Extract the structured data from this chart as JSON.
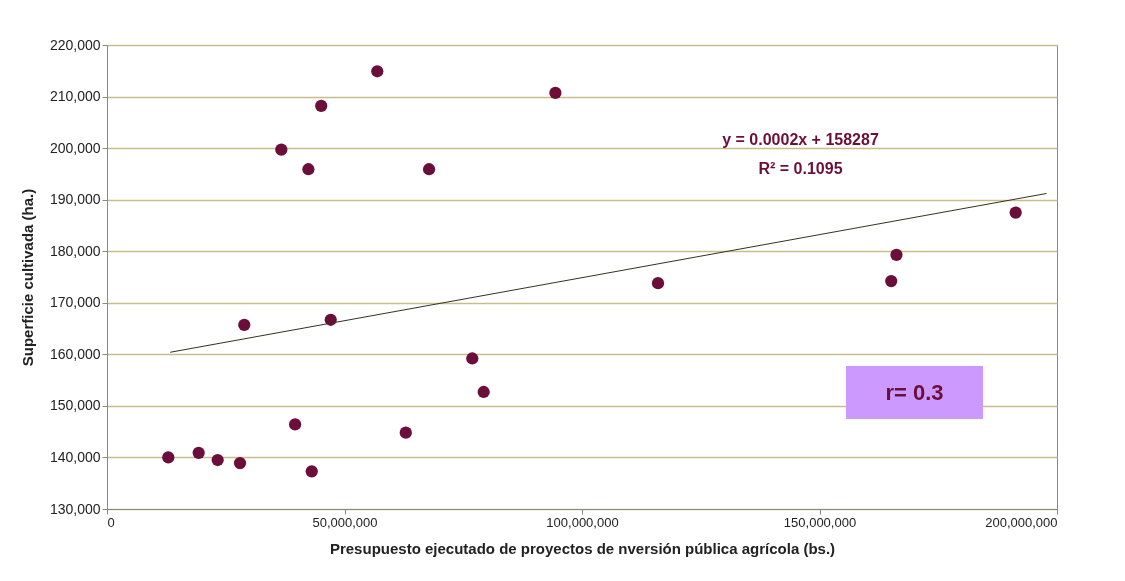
{
  "chart_data": {
    "type": "scatter",
    "xlabel": "Presupuesto ejecutado de proyectos de nversión pública agrícola (bs.)",
    "ylabel": "Superficie cultivada (ha.)",
    "series": [
      {
        "marker": "circle",
        "color": "#6b0f3a",
        "x": [
          12900000,
          19300000,
          23300000,
          28000000,
          28900000,
          36700000,
          39600000,
          42400000,
          43100000,
          45100000,
          47100000,
          56900000,
          62900000,
          67800000,
          76900000,
          79300000,
          94400000,
          116000000,
          165100000,
          166200000,
          191300000
        ],
        "values": [
          140000,
          140900,
          139500,
          138900,
          165700,
          199700,
          146400,
          195900,
          137300,
          208200,
          166700,
          214900,
          144800,
          195900,
          159200,
          152700,
          210700,
          173800,
          174200,
          179300,
          187500
        ]
      },
      {
        "type": "line",
        "marker": "none",
        "color": "#333322",
        "x": [
          13300000,
          197800000
        ],
        "values": [
          160400,
          191200
        ]
      }
    ],
    "xlim": [
      0,
      200000000
    ],
    "xticks": [
      {
        "value": 0,
        "label": "0"
      },
      {
        "value": 50000000,
        "label": "50,000,000"
      },
      {
        "value": 100000000,
        "label": "100,000,000"
      },
      {
        "value": 150000000,
        "label": "150,000,000"
      },
      {
        "value": 200000000,
        "label": "200,000,000"
      }
    ],
    "ylim": [
      130000,
      220000
    ],
    "yticks": [
      {
        "value": 130000,
        "label": "130,000"
      },
      {
        "value": 140000,
        "label": "140,000"
      },
      {
        "value": 150000,
        "label": "150,000"
      },
      {
        "value": 160000,
        "label": "160,000"
      },
      {
        "value": 170000,
        "label": "170,000"
      },
      {
        "value": 180000,
        "label": "180,000"
      },
      {
        "value": 190000,
        "label": "190,000"
      },
      {
        "value": 200000,
        "label": "200,000"
      },
      {
        "value": 210000,
        "label": "210,000"
      },
      {
        "value": 220000,
        "label": "220,000"
      }
    ],
    "grid": "y",
    "annotations": [
      "y = 0.0002x + 158287",
      "R² = 0.1095",
      "r= 0.3"
    ]
  }
}
